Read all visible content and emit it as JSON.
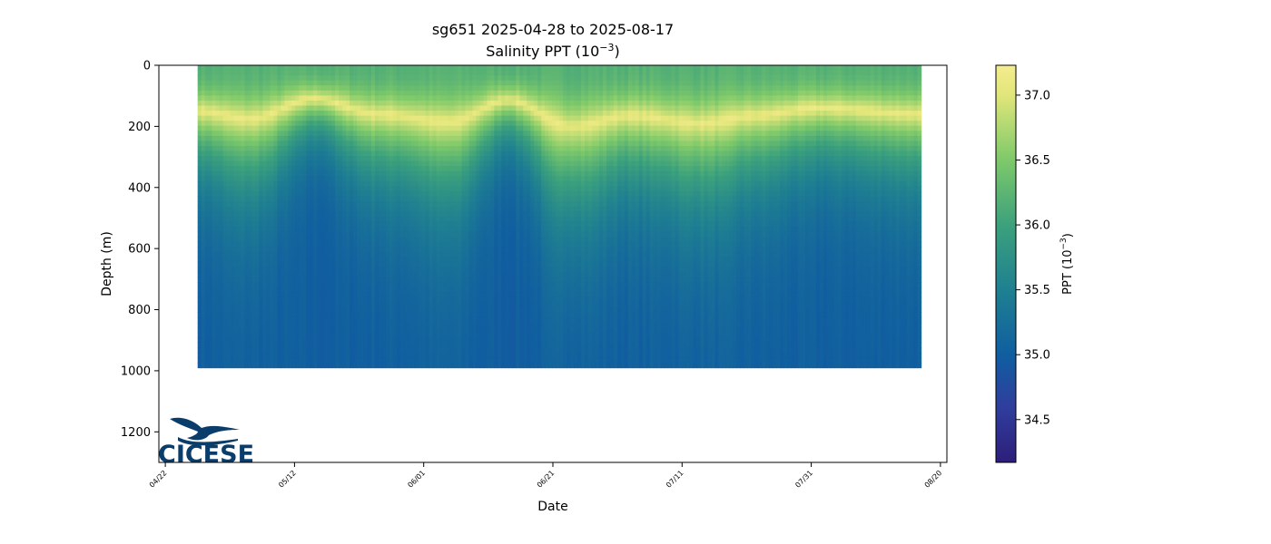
{
  "chart_data": {
    "type": "heatmap",
    "title": "sg651 2025-04-28 to 2025-08-17",
    "subtitle_main": "Salinity PPT (10",
    "subtitle_exp": "−3",
    "subtitle_close": ")",
    "xlabel": "Date",
    "ylabel": "Depth (m)",
    "x_dates": {
      "range_start": "2025-04-21",
      "range_end": "2025-08-21",
      "ticks": [
        {
          "date": "2025-04-22",
          "label": "04/22"
        },
        {
          "date": "2025-05-12",
          "label": "05/12"
        },
        {
          "date": "2025-06-01",
          "label": "06/01"
        },
        {
          "date": "2025-06-21",
          "label": "06/21"
        },
        {
          "date": "2025-07-11",
          "label": "07/11"
        },
        {
          "date": "2025-07-31",
          "label": "07/31"
        },
        {
          "date": "2025-08-20",
          "label": "08/20"
        }
      ],
      "data_start": "2025-04-27",
      "data_end": "2025-08-17"
    },
    "y_depth": {
      "range": [
        0,
        1300
      ],
      "inverted": true,
      "ticks": [
        0,
        200,
        400,
        600,
        800,
        1000,
        1200
      ],
      "max_dive_depth_m": 990
    },
    "colorbar": {
      "label_main": "PPT (10",
      "label_exp": "−3",
      "label_close": ")",
      "range": [
        34.17,
        37.23
      ],
      "ticks": [
        "34.5",
        "35.0",
        "35.5",
        "36.0",
        "36.5",
        "37.0"
      ],
      "stops": [
        {
          "v": 34.17,
          "color": "#2d1e7a"
        },
        {
          "v": 34.6,
          "color": "#2f3e9e"
        },
        {
          "v": 35.0,
          "color": "#105ea0"
        },
        {
          "v": 35.5,
          "color": "#1f8091"
        },
        {
          "v": 36.0,
          "color": "#3ca17c"
        },
        {
          "v": 36.5,
          "color": "#7ec96a"
        },
        {
          "v": 37.0,
          "color": "#e1e67a"
        },
        {
          "v": 37.23,
          "color": "#f5ec8e"
        }
      ]
    },
    "profile": {
      "surface_value": 36.2,
      "max_value": 37.1,
      "max_depth_m_at_dates": [
        {
          "date": "2025-04-27",
          "depth": 150
        },
        {
          "date": "2025-05-05",
          "depth": 175
        },
        {
          "date": "2025-05-15",
          "depth": 110
        },
        {
          "date": "2025-05-25",
          "depth": 160
        },
        {
          "date": "2025-06-05",
          "depth": 185
        },
        {
          "date": "2025-06-14",
          "depth": 115
        },
        {
          "date": "2025-06-24",
          "depth": 200
        },
        {
          "date": "2025-07-03",
          "depth": 165
        },
        {
          "date": "2025-07-14",
          "depth": 190
        },
        {
          "date": "2025-07-22",
          "depth": 165
        },
        {
          "date": "2025-08-01",
          "depth": 140
        },
        {
          "date": "2025-08-17",
          "depth": 160
        }
      ],
      "deep_value": 35.0
    },
    "logo": {
      "text": "CICESE",
      "color": "#0b3d6b"
    }
  }
}
